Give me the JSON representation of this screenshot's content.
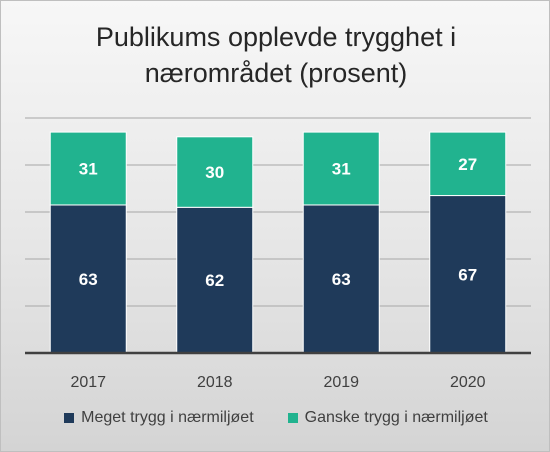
{
  "chart_data": {
    "type": "bar",
    "stacked": true,
    "title": "Publikums opplevde trygghet i nærområdet (prosent)",
    "categories": [
      "2017",
      "2018",
      "2019",
      "2020"
    ],
    "series": [
      {
        "name": "Meget trygg i nærmiljøet",
        "color": "#1f3a5a",
        "values": [
          63,
          62,
          63,
          67
        ]
      },
      {
        "name": "Ganske trygg i nærmiljøet",
        "color": "#21b38f",
        "values": [
          31,
          30,
          31,
          27
        ]
      }
    ],
    "ylim": [
      0,
      100
    ],
    "grid": true,
    "legend": "bottom"
  }
}
